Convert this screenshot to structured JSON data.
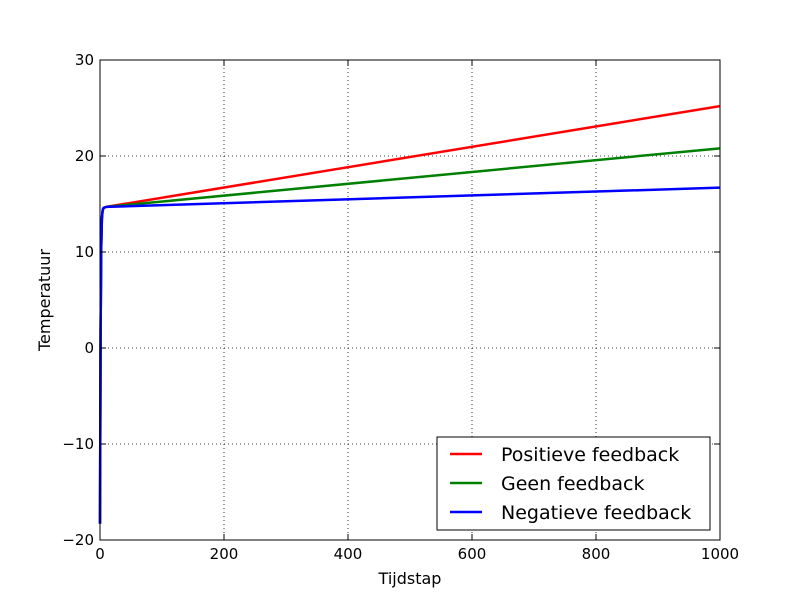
{
  "chart_data": {
    "type": "line",
    "title": "",
    "xlabel": "Tijdstap",
    "ylabel": "Temperatuur",
    "xlim": [
      0,
      1000
    ],
    "ylim": [
      -20,
      30
    ],
    "xticks": [
      0,
      200,
      400,
      600,
      800,
      1000
    ],
    "yticks": [
      -20,
      -10,
      0,
      10,
      20,
      30
    ],
    "xtick_labels": [
      "0",
      "200",
      "400",
      "600",
      "800",
      "1000"
    ],
    "ytick_labels": [
      "−20",
      "−10",
      "0",
      "10",
      "20",
      "30"
    ],
    "grid": true,
    "legend_position": "lower-right",
    "series": [
      {
        "name": "Positieve feedback",
        "color": "#ff0000",
        "x": [
          0,
          1,
          2,
          3,
          4,
          5,
          6,
          8,
          10,
          1000
        ],
        "y": [
          -18.3,
          2.0,
          10.5,
          13.4,
          14.2,
          14.5,
          14.6,
          14.65,
          14.7,
          25.2
        ]
      },
      {
        "name": "Geen feedback",
        "color": "#008000",
        "x": [
          0,
          1,
          2,
          3,
          4,
          5,
          6,
          8,
          10,
          1000
        ],
        "y": [
          -18.3,
          2.0,
          10.5,
          13.4,
          14.2,
          14.5,
          14.6,
          14.65,
          14.7,
          20.8
        ]
      },
      {
        "name": "Negatieve feedback",
        "color": "#0000ff",
        "x": [
          0,
          1,
          2,
          3,
          4,
          5,
          6,
          8,
          10,
          1000
        ],
        "y": [
          -18.3,
          2.0,
          10.5,
          13.4,
          14.2,
          14.5,
          14.6,
          14.65,
          14.7,
          16.7
        ]
      }
    ]
  }
}
